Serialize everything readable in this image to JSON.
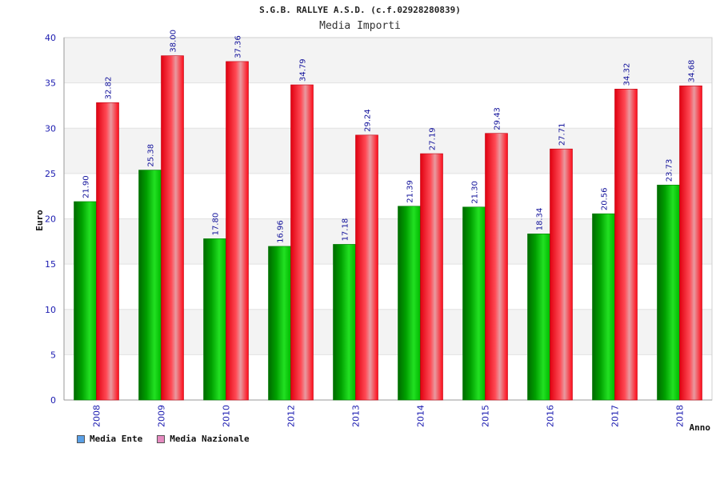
{
  "header": {
    "title": "S.G.B. RALLYE A.S.D. (c.f.02928280839)",
    "subtitle": "Media Importi"
  },
  "legend": {
    "items": [
      {
        "label": "Media Ente",
        "color": "#5aa0e6"
      },
      {
        "label": "Media Nazionale",
        "color": "#e58ac0"
      }
    ]
  },
  "chart_data": {
    "type": "bar",
    "title": "S.G.B. RALLYE A.S.D. (c.f.02928280839)",
    "subtitle": "Media Importi",
    "xlabel": "Anno",
    "ylabel": "Euro",
    "ylim": [
      0,
      40
    ],
    "yticks": [
      0,
      5,
      10,
      15,
      20,
      25,
      30,
      35,
      40
    ],
    "categories": [
      "2008",
      "2009",
      "2010",
      "2012",
      "2013",
      "2014",
      "2015",
      "2016",
      "2017",
      "2018"
    ],
    "series": [
      {
        "name": "Media Ente",
        "color": "#00b000",
        "values": [
          21.9,
          25.38,
          17.8,
          16.96,
          17.18,
          21.39,
          21.3,
          18.34,
          20.56,
          23.73
        ]
      },
      {
        "name": "Media Nazionale",
        "color": "#f01020",
        "values": [
          32.82,
          38.0,
          37.36,
          34.79,
          29.24,
          27.19,
          29.43,
          27.71,
          34.32,
          34.68
        ]
      }
    ],
    "value_labels": [
      [
        "21.90",
        "25.38",
        "17.80",
        "16.96",
        "17.18",
        "21.39",
        "21.30",
        "18.34",
        "20.56",
        "23.73"
      ],
      [
        "32.82",
        "38.00",
        "37.36",
        "34.79",
        "29.24",
        "27.19",
        "29.43",
        "27.71",
        "34.32",
        "34.68"
      ]
    ],
    "grid": true,
    "legend_position": "bottom-left"
  }
}
